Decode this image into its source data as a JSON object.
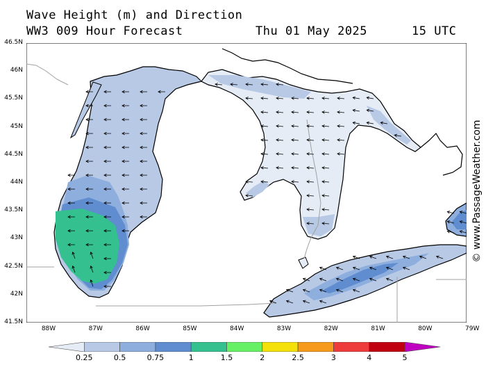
{
  "header": {
    "line1_left": "Wave Height (m) and Direction",
    "line2_left": "WW3 009 Hour Forecast",
    "line2_date": "Thu 01 May 2025",
    "line2_time": "15 UTC"
  },
  "credit": "© www.PassageWeather.com",
  "latitude_labels": [
    "46.5N",
    "46N",
    "45.5N",
    "45N",
    "44.5N",
    "44N",
    "43.5N",
    "43N",
    "42.5N",
    "42N",
    "41.5N"
  ],
  "longitude_labels": [
    "88W",
    "87W",
    "86W",
    "85W",
    "84W",
    "83W",
    "82W",
    "81W",
    "80W",
    "79W"
  ],
  "colorbar": {
    "labels": [
      "0.25",
      "0.5",
      "0.75",
      "1",
      "1.5",
      "2",
      "2.5",
      "3",
      "4",
      "5"
    ],
    "colors": [
      "#e6ecf6",
      "#b8c9e6",
      "#8eaedd",
      "#5f8dcf",
      "#35c08f",
      "#66f066",
      "#f4e00a",
      "#f59a1a",
      "#ee3b3b",
      "#c00010",
      "#c000c0"
    ]
  },
  "map_colors": {
    "land": "#ffffff",
    "coast": "#000000",
    "border": "#a0a0a0",
    "arrow": "#000000"
  }
}
